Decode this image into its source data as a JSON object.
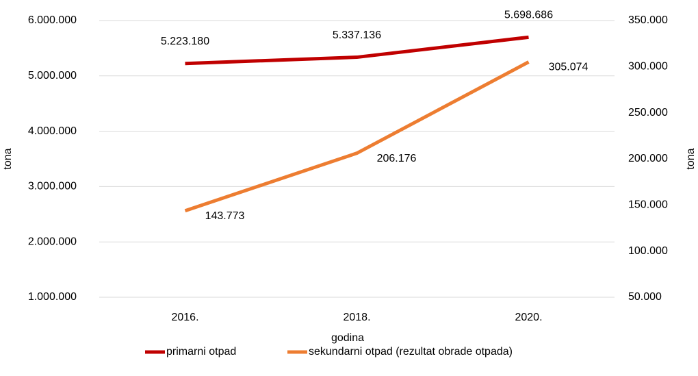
{
  "chart_data": {
    "type": "line",
    "categories": [
      "2016.",
      "2018.",
      "2020."
    ],
    "x_label": "godina",
    "y_label": "tona",
    "y2_label": "tona",
    "series": [
      {
        "name": "primarni otpad",
        "color": "#c00000",
        "values": [
          5223180,
          5337136,
          5698686
        ],
        "value_labels": [
          "5.223.180",
          "5.337.136",
          "5.698.686"
        ]
      },
      {
        "name": "sekundarni otpad (rezultat obrade otpada)",
        "color": "#ed7d31",
        "axis": "y2",
        "values": [
          143773,
          206176,
          305074
        ],
        "value_labels": [
          "143.773",
          "206.176",
          "305.074"
        ]
      }
    ],
    "ylim": [
      1000000,
      6000000
    ],
    "yticks": [
      {
        "value": 1000000,
        "label": "1.000.000"
      },
      {
        "value": 2000000,
        "label": "2.000.000"
      },
      {
        "value": 3000000,
        "label": "3.000.000"
      },
      {
        "value": 4000000,
        "label": "4.000.000"
      },
      {
        "value": 5000000,
        "label": "5.000.000"
      },
      {
        "value": 6000000,
        "label": "6.000.000"
      }
    ],
    "y2lim": [
      50000,
      350000
    ],
    "y2ticks": [
      {
        "value": 50000,
        "label": "50.000"
      },
      {
        "value": 100000,
        "label": "100.000"
      },
      {
        "value": 150000,
        "label": "150.000"
      },
      {
        "value": 200000,
        "label": "200.000"
      },
      {
        "value": 250000,
        "label": "250.000"
      },
      {
        "value": 300000,
        "label": "300.000"
      },
      {
        "value": 350000,
        "label": "350.000"
      }
    ],
    "grid": true,
    "legend": "bottom"
  }
}
